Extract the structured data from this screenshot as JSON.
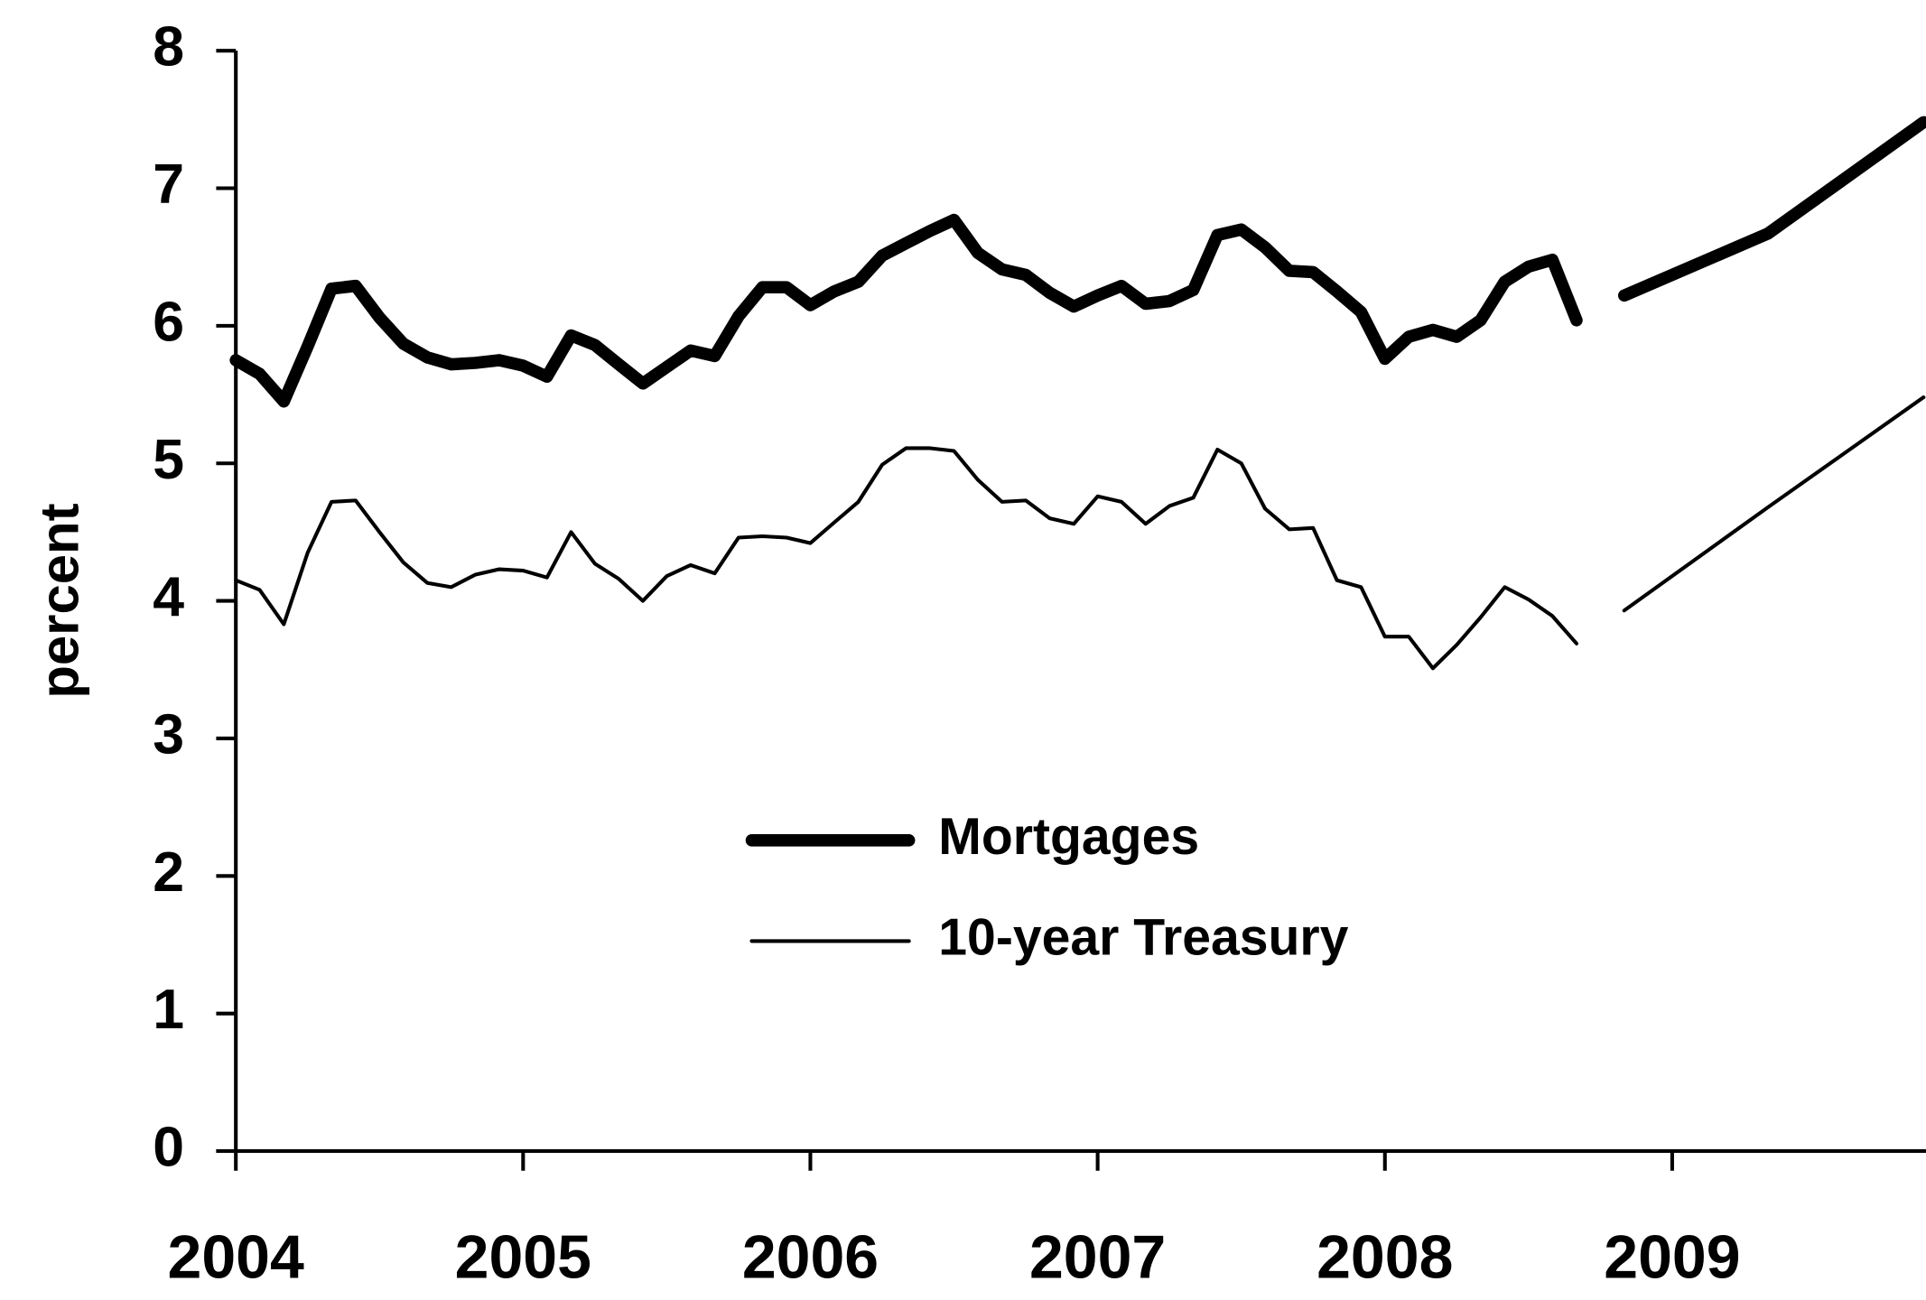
{
  "chart_data": {
    "type": "line",
    "ylabel": "percent",
    "x": [
      2004,
      2004.083,
      2004.167,
      2004.25,
      2004.333,
      2004.417,
      2004.5,
      2004.583,
      2004.667,
      2004.75,
      2004.833,
      2004.917,
      2005,
      2005.083,
      2005.167,
      2005.25,
      2005.333,
      2005.417,
      2005.5,
      2005.583,
      2005.667,
      2005.75,
      2005.833,
      2005.917,
      2006,
      2006.083,
      2006.167,
      2006.25,
      2006.333,
      2006.417,
      2006.5,
      2006.583,
      2006.667,
      2006.75,
      2006.833,
      2006.917,
      2007,
      2007.083,
      2007.167,
      2007.25,
      2007.333,
      2007.417,
      2007.5,
      2007.583,
      2007.667,
      2007.75,
      2007.833,
      2007.917,
      2008,
      2008.083,
      2008.167,
      2008.25,
      2008.333,
      2008.417,
      2008.5,
      2008.583,
      2008.667,
      2008.75,
      2008.833,
      2009.333,
      2009.875
    ],
    "series": [
      {
        "name": "Mortgages",
        "color": "#000000",
        "line_width": 10,
        "values": [
          5.75,
          5.65,
          5.45,
          5.85,
          6.27,
          6.29,
          6.06,
          5.87,
          5.77,
          5.72,
          5.73,
          5.75,
          5.71,
          5.63,
          5.93,
          5.86,
          5.72,
          5.58,
          5.7,
          5.82,
          5.78,
          6.07,
          6.28,
          6.28,
          6.15,
          6.25,
          6.32,
          6.51,
          6.6,
          6.69,
          6.77,
          6.53,
          6.41,
          6.37,
          6.24,
          6.14,
          6.22,
          6.29,
          6.16,
          6.18,
          6.26,
          6.66,
          6.7,
          6.57,
          6.4,
          6.39,
          6.25,
          6.1,
          5.76,
          5.92,
          5.97,
          5.92,
          6.04,
          6.32,
          6.43,
          6.48,
          6.04,
          null,
          6.22,
          6.67,
          7.48
        ]
      },
      {
        "name": "10-year Treasury",
        "color": "#000000",
        "line_width": 3,
        "values": [
          4.15,
          4.08,
          3.83,
          4.35,
          4.72,
          4.73,
          4.5,
          4.28,
          4.13,
          4.1,
          4.19,
          4.23,
          4.22,
          4.17,
          4.5,
          4.27,
          4.16,
          4.0,
          4.18,
          4.26,
          4.2,
          4.46,
          4.47,
          4.46,
          4.42,
          4.57,
          4.72,
          4.99,
          5.11,
          5.11,
          5.09,
          4.88,
          4.72,
          4.73,
          4.6,
          4.56,
          4.76,
          4.72,
          4.56,
          4.69,
          4.75,
          5.1,
          5.0,
          4.67,
          4.52,
          4.53,
          4.15,
          4.1,
          3.74,
          3.74,
          3.51,
          3.68,
          3.88,
          4.1,
          4.01,
          3.89,
          3.69,
          null,
          3.93,
          4.68,
          5.48
        ]
      }
    ],
    "xlim": [
      2004,
      2009.875
    ],
    "xticks": [
      2004,
      2005,
      2006,
      2007,
      2008,
      2009
    ],
    "ylim": [
      0,
      8
    ],
    "yticks": [
      0,
      1,
      2,
      3,
      4,
      5,
      6,
      7,
      8
    ],
    "grid": false,
    "legend": "center"
  }
}
